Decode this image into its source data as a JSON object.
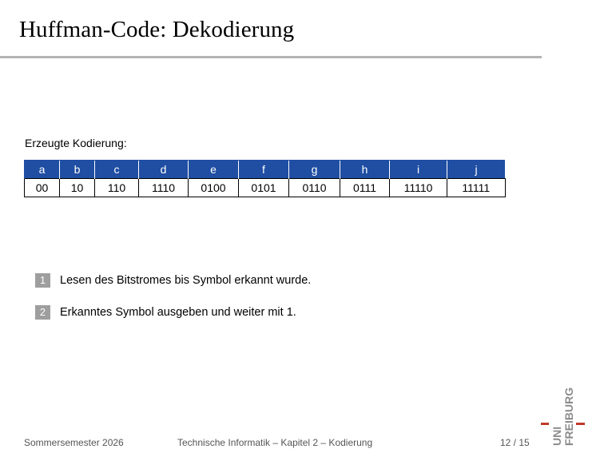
{
  "slide": {
    "title": "Huffman-Code: Dekodierung",
    "label": "Erzeugte Kodierung:"
  },
  "table": {
    "symbols": [
      "a",
      "b",
      "c",
      "d",
      "e",
      "f",
      "g",
      "h",
      "i",
      "j"
    ],
    "codes": [
      "00",
      "10",
      "110",
      "1110",
      "0100",
      "0101",
      "0110",
      "0111",
      "11110",
      "11111"
    ]
  },
  "steps": [
    {
      "number": "1",
      "text": "Lesen des Bitstromes bis Symbol erkannt wurde."
    },
    {
      "number": "2",
      "text": "Erkanntes Symbol ausgeben und weiter mit 1."
    }
  ],
  "footer": {
    "left": "Sommersemester 2026",
    "center": "Technische Informatik – Kapitel 2 – Kodierung",
    "page": "12 / 15"
  },
  "logo": {
    "line1": "UNI",
    "line2": "FREIBURG"
  },
  "colors": {
    "table_header": "#1f4ea3",
    "logo_red": "#c0392b",
    "logo_gray": "#8c8c8c"
  }
}
